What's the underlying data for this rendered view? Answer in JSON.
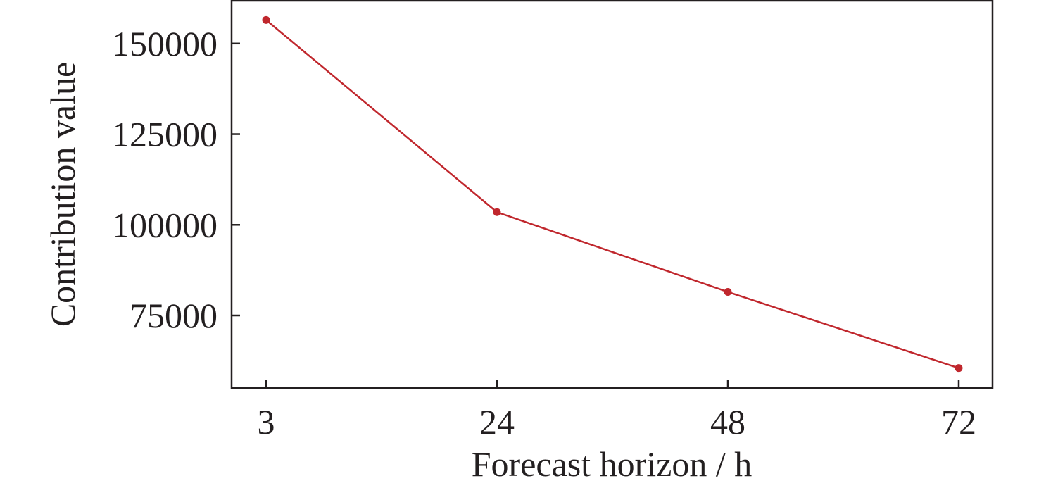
{
  "chart_data": {
    "type": "line",
    "x": [
      "3",
      "24",
      "48",
      "72"
    ],
    "series": [
      {
        "values": [
          156500,
          103500,
          81500,
          60500
        ]
      }
    ],
    "xlabel": "Forecast horizon / h",
    "ylabel": "Contribution value",
    "yticks": [
      75000,
      100000,
      125000,
      150000
    ],
    "ylim": [
      55000,
      162000
    ],
    "grid": false,
    "line_color": "#c0272d",
    "axis_color": "#231f20"
  }
}
